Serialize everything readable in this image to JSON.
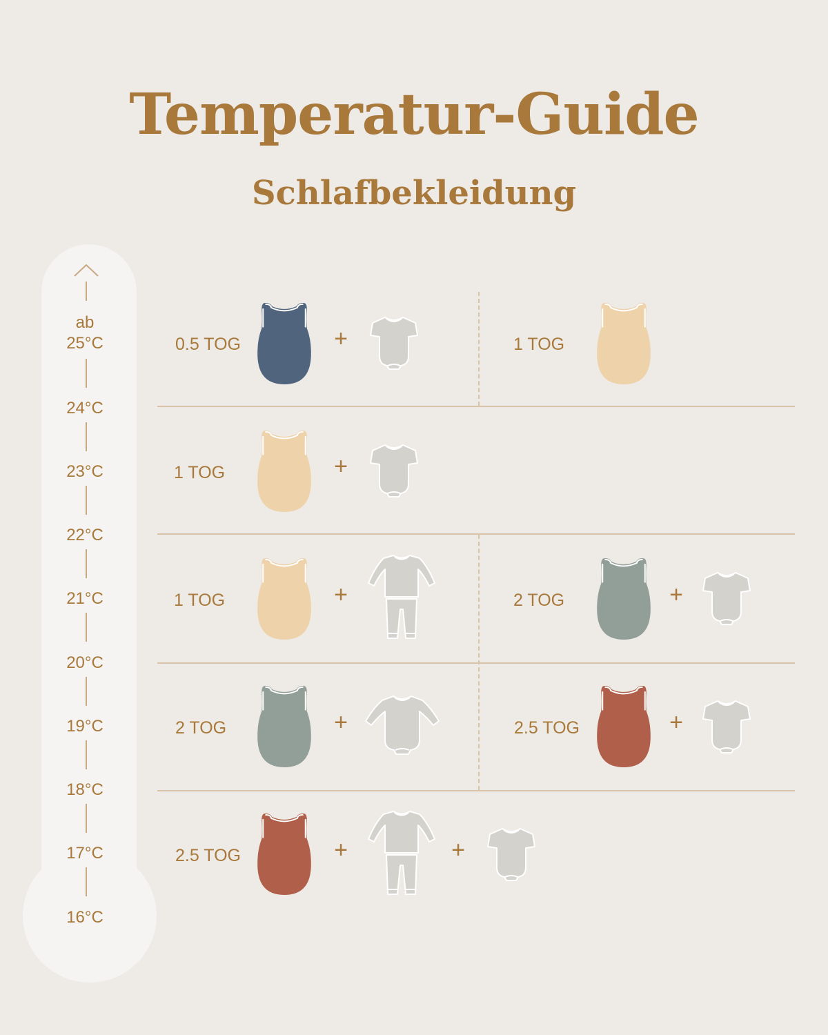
{
  "header": {
    "title": "Temperatur-Guide",
    "subtitle": "Schlafbekleidung"
  },
  "thermometer": {
    "labels": [
      "ab\n25°C",
      "24°C",
      "23°C",
      "22°C",
      "21°C",
      "20°C",
      "19°C",
      "18°C",
      "17°C",
      "16°C"
    ]
  },
  "rows": [
    {
      "left": {
        "tog": "0.5 TOG",
        "items": [
          "sleepsack-navy",
          "bodysuit-short-sleeve"
        ]
      },
      "right": {
        "tog": "1 TOG",
        "items": [
          "sleepsack-peach"
        ]
      }
    },
    {
      "left": {
        "tog": "1 TOG",
        "items": [
          "sleepsack-peach",
          "bodysuit-short-sleeve"
        ]
      }
    },
    {
      "left": {
        "tog": "1 TOG",
        "items": [
          "sleepsack-peach",
          "pajama-set"
        ]
      },
      "right": {
        "tog": "2 TOG",
        "items": [
          "sleepsack-sage",
          "bodysuit-short-sleeve"
        ]
      }
    },
    {
      "left": {
        "tog": "2 TOG",
        "items": [
          "sleepsack-sage",
          "bodysuit-long-sleeve"
        ]
      },
      "right": {
        "tog": "2.5 TOG",
        "items": [
          "sleepsack-rust",
          "bodysuit-short-sleeve"
        ]
      }
    },
    {
      "left": {
        "tog": "2.5 TOG",
        "items": [
          "sleepsack-rust",
          "pajama-set",
          "bodysuit-short-sleeve"
        ]
      }
    }
  ],
  "plus_symbol": "+",
  "colors": {
    "background": "#eeeae6",
    "accent": "#a8793a",
    "navy": "#50647e",
    "peach": "#eed2aa",
    "sage": "#919f98",
    "rust": "#b0604a",
    "garment_grey": "#d4d2cd"
  }
}
